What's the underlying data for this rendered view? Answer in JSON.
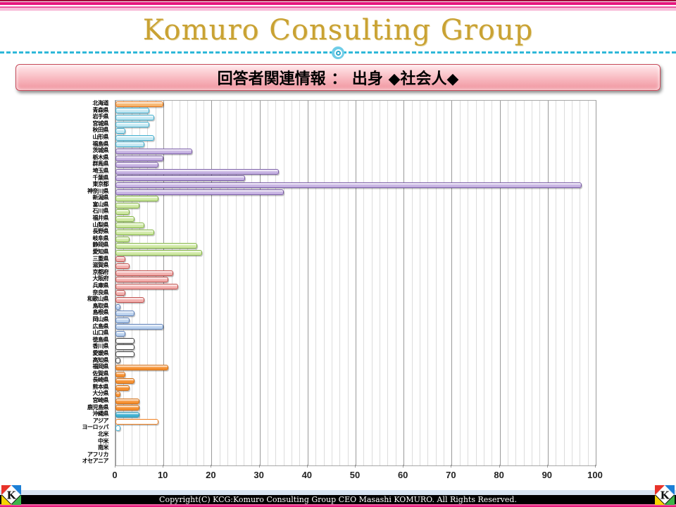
{
  "header": {
    "title": "Komuro Consulting Group",
    "title_color": "#c9a233",
    "stripe_color": "#e6177e",
    "divider_color": "#2fb8d9"
  },
  "banner": {
    "text": "回答者関連情報 ： 出身 ◆社会人◆"
  },
  "chart_data": {
    "type": "bar",
    "orientation": "horizontal",
    "title": "",
    "xlabel": "",
    "ylabel": "",
    "xlim": [
      0,
      100
    ],
    "x_ticks": [
      0,
      10,
      20,
      30,
      40,
      50,
      60,
      70,
      80,
      90,
      100
    ],
    "grid": "vertical minor gridlines, darker major line every 10",
    "legend": "none",
    "categories": [
      "北海道",
      "青森県",
      "岩手県",
      "宮城県",
      "秋田県",
      "山形県",
      "福島県",
      "茨城県",
      "栃木県",
      "群馬県",
      "埼玉県",
      "千葉県",
      "東京都",
      "神奈川県",
      "新潟県",
      "富山県",
      "石川県",
      "福井県",
      "山梨県",
      "長野県",
      "岐阜県",
      "静岡県",
      "愛知県",
      "三重県",
      "滋賀県",
      "京都府",
      "大阪府",
      "兵庫県",
      "奈良県",
      "和歌山県",
      "鳥取県",
      "島根県",
      "岡山県",
      "広島県",
      "山口県",
      "徳島県",
      "香川県",
      "愛媛県",
      "高知県",
      "福岡県",
      "佐賀県",
      "長崎県",
      "熊本県",
      "大分県",
      "宮崎県",
      "鹿児島県",
      "沖縄県",
      "アジア",
      "ヨーロッパ",
      "北米",
      "中米",
      "南米",
      "アフリカ",
      "オセアニア"
    ],
    "values": [
      10,
      7,
      8,
      7,
      2,
      8,
      6,
      16,
      10,
      9,
      34,
      27,
      97,
      35,
      9,
      5,
      3,
      4,
      6,
      8,
      3,
      17,
      18,
      2,
      3,
      12,
      11,
      13,
      2,
      6,
      1,
      4,
      3,
      10,
      2,
      4,
      4,
      4,
      1,
      11,
      2,
      4,
      3,
      1,
      5,
      5,
      5,
      9,
      1,
      0,
      0,
      0,
      0,
      0
    ],
    "groups": [
      "hokkaido",
      "tohoku",
      "tohoku",
      "tohoku",
      "tohoku",
      "tohoku",
      "tohoku",
      "kanto",
      "kanto",
      "kanto",
      "kanto",
      "kanto",
      "kanto",
      "kanto",
      "chubu",
      "chubu",
      "chubu",
      "chubu",
      "chubu",
      "chubu",
      "chubu",
      "chubu",
      "chubu",
      "kinki",
      "kinki",
      "kinki",
      "kinki",
      "kinki",
      "kinki",
      "kinki",
      "chugoku",
      "chugoku",
      "chugoku",
      "chugoku",
      "chugoku",
      "shikoku",
      "shikoku",
      "shikoku",
      "shikoku",
      "kyushu",
      "kyushu",
      "kyushu",
      "kyushu",
      "kyushu",
      "kyushu",
      "kyushu",
      "okinawa",
      "asia",
      "europe",
      "none",
      "none",
      "none",
      "none",
      "none"
    ],
    "palette": {
      "hokkaido": {
        "fill": "#f7b56e",
        "border": "#e2761b"
      },
      "tohoku": {
        "fill": "#c3e7f2",
        "border": "#3faece"
      },
      "kanto": {
        "fill": "#c6b2e2",
        "border": "#7b5ea7"
      },
      "chubu": {
        "fill": "#cfe8a4",
        "border": "#84b645"
      },
      "kinki": {
        "fill": "#f2afad",
        "border": "#c0504d"
      },
      "chugoku": {
        "fill": "#bcd2ee",
        "border": "#5b7fb8"
      },
      "shikoku": {
        "fill": "#ffffff",
        "border": "#404040"
      },
      "kyushu": {
        "fill": "#f59133",
        "border": "#d06d14"
      },
      "okinawa": {
        "fill": "#41b1d2",
        "border": "#2a93b0"
      },
      "asia": {
        "fill": "#ffffff",
        "border": "#f08020"
      },
      "europe": {
        "fill": "#ffffff",
        "border": "#41b1d2"
      },
      "none": {
        "fill": "transparent",
        "border": "transparent"
      }
    }
  },
  "footer": {
    "copyright": "Copyright(C)  KCG:Komuro Consulting Group  CEO Masashi KOMURO. All Rights Reserved.",
    "logo_letter": "K"
  }
}
